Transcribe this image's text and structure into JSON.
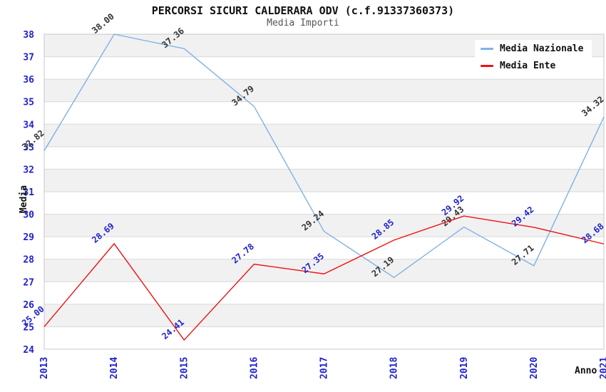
{
  "title": "PERCORSI SICURI CALDERARA ODV (c.f.91337360373)",
  "subtitle": "Media Importi",
  "legend": {
    "items": [
      {
        "label": "Media Nazionale",
        "color": "#7fb1e8"
      },
      {
        "label": "Media Ente",
        "color": "#ee1111"
      }
    ]
  },
  "chart_data": {
    "type": "line",
    "title": "PERCORSI SICURI CALDERARA ODV (c.f.91337360373)",
    "subtitle": "Media Importi",
    "xlabel": "Anno",
    "ylabel": "Media",
    "x": [
      2013,
      2014,
      2015,
      2016,
      2017,
      2018,
      2019,
      2020,
      2021
    ],
    "series": [
      {
        "name": "Media Nazionale",
        "color": "#7fb1e8",
        "label_color": "#333333",
        "values": [
          32.82,
          38.0,
          37.36,
          34.79,
          29.24,
          27.19,
          29.43,
          27.71,
          34.32
        ]
      },
      {
        "name": "Media Ente",
        "color": "#ee1111",
        "label_color": "#2121cd",
        "values": [
          25.0,
          28.69,
          24.41,
          27.78,
          27.35,
          28.85,
          29.92,
          29.42,
          28.68
        ]
      }
    ],
    "ylim": [
      24,
      38
    ],
    "y_ticks": [
      24,
      25,
      26,
      27,
      28,
      29,
      30,
      31,
      32,
      33,
      34,
      35,
      36,
      37,
      38
    ],
    "grid": true,
    "legend_position": "top-right",
    "colors": {
      "tick_labels": "#2121cd",
      "grid_line": "#d9d9d9",
      "plot_border": "#c8c8c8",
      "band_light": "#ffffff",
      "band_dark": "#f1f1f1"
    }
  }
}
